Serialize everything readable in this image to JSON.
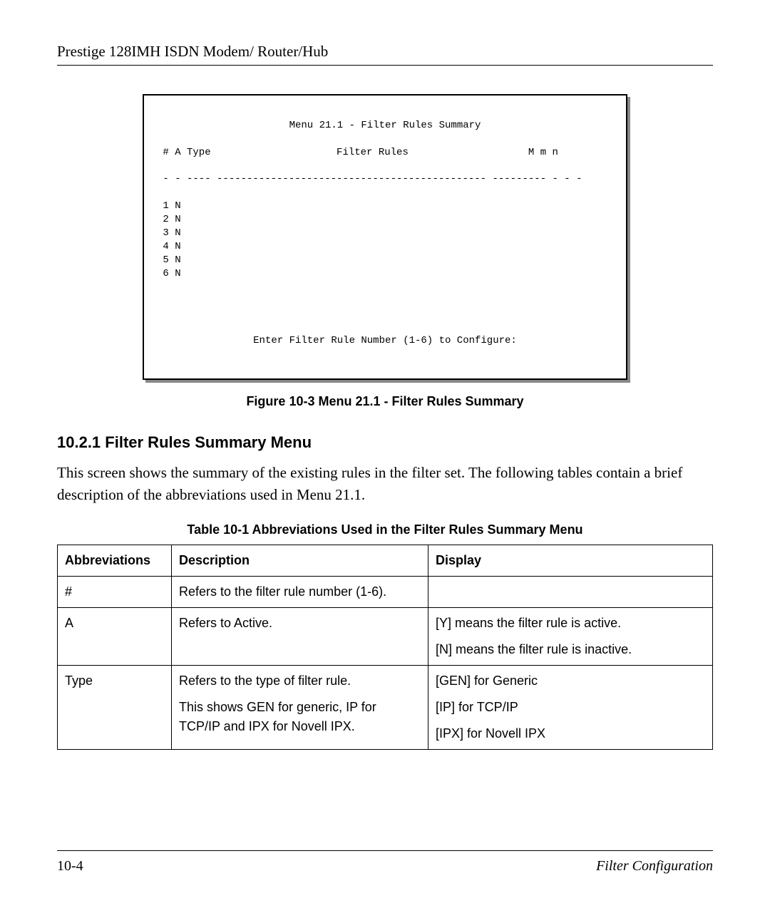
{
  "header": "Prestige 128IMH ISDN Modem/ Router/Hub",
  "terminal": {
    "title": "Menu 21.1 - Filter Rules Summary",
    "col_header_left": " # A Type",
    "col_header_center": "Filter Rules",
    "col_header_right": "M m n",
    "dashes": " - - ---- --------------------------------------------- --------- - - -",
    "rows": [
      " 1 N",
      " 2 N",
      " 3 N",
      " 4 N",
      " 5 N",
      " 6 N"
    ],
    "prompt": "Enter Filter Rule Number (1-6) to Configure:"
  },
  "figure_caption": "Figure 10-3 Menu 21.1 - Filter Rules Summary",
  "section_heading": "10.2.1 Filter Rules Summary Menu",
  "body": "This screen shows the summary of the existing rules in the filter set.  The following tables contain a brief description of the abbreviations used in Menu 21.1.",
  "table_caption": "Table 10-1 Abbreviations Used in the Filter Rules Summary Menu",
  "table": {
    "headers": [
      "Abbreviations",
      "Description",
      "Display"
    ],
    "rows": [
      {
        "abbr": "#",
        "desc": [
          "Refers to the filter rule number (1-6)."
        ],
        "disp": [
          ""
        ]
      },
      {
        "abbr": "A",
        "desc": [
          "Refers to Active."
        ],
        "disp": [
          "[Y] means the filter rule is active.",
          "[N] means the filter rule is inactive."
        ]
      },
      {
        "abbr": "Type",
        "desc": [
          "Refers to the type of filter rule.",
          "This shows GEN for generic, IP for TCP/IP and IPX for Novell IPX."
        ],
        "disp": [
          "[GEN] for Generic",
          "[IP] for TCP/IP",
          "[IPX] for Novell IPX"
        ]
      }
    ]
  },
  "footer": {
    "left": "10-4",
    "right": "Filter Configuration"
  }
}
